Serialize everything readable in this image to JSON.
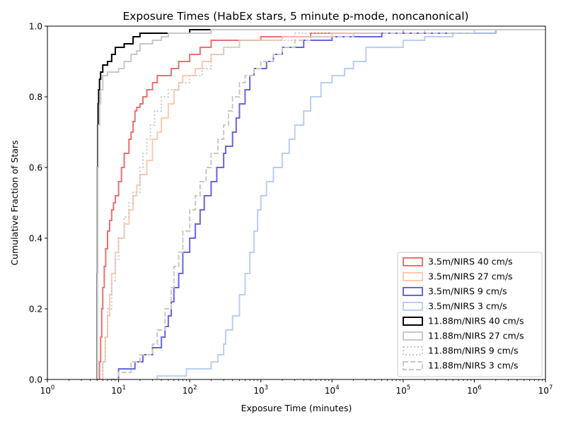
{
  "chart_data": {
    "type": "line",
    "title": "Exposure Times (HabEx stars, 5 minute p-mode, noncanonical)",
    "xlabel": "Exposure Time (minutes)",
    "ylabel": "Cumulative Fraction of Stars",
    "xscale": "log",
    "xlim": [
      1,
      10000000
    ],
    "ylim": [
      0,
      1
    ],
    "x_ticks": [
      {
        "value": 1,
        "base": "10",
        "exp": "0"
      },
      {
        "value": 10,
        "base": "10",
        "exp": "1"
      },
      {
        "value": 100,
        "base": "10",
        "exp": "2"
      },
      {
        "value": 1000,
        "base": "10",
        "exp": "3"
      },
      {
        "value": 10000,
        "base": "10",
        "exp": "4"
      },
      {
        "value": 100000,
        "base": "10",
        "exp": "5"
      },
      {
        "value": 1000000,
        "base": "10",
        "exp": "6"
      },
      {
        "value": 10000000,
        "base": "10",
        "exp": "7"
      }
    ],
    "y_ticks": [
      {
        "value": 0,
        "label": "0.0"
      },
      {
        "value": 0.2,
        "label": "0.2"
      },
      {
        "value": 0.4,
        "label": "0.4"
      },
      {
        "value": 0.6,
        "label": "0.6"
      },
      {
        "value": 0.8,
        "label": "0.8"
      },
      {
        "value": 1,
        "label": "1.0"
      }
    ],
    "grid": false,
    "legend_position": "lower-right",
    "series": [
      {
        "name": "3.5m/NIRS 40 cm/s",
        "color": "#e8575a",
        "style": "solid",
        "alpha": 0.85,
        "points": [
          [
            5.2,
            0
          ],
          [
            5.4,
            0.05
          ],
          [
            5.6,
            0.12
          ],
          [
            5.8,
            0.2
          ],
          [
            6,
            0.26
          ],
          [
            6.3,
            0.32
          ],
          [
            6.6,
            0.37
          ],
          [
            7,
            0.42
          ],
          [
            7.5,
            0.45
          ],
          [
            8,
            0.48
          ],
          [
            8.5,
            0.5
          ],
          [
            9,
            0.52
          ],
          [
            10,
            0.56
          ],
          [
            11,
            0.6
          ],
          [
            12,
            0.64
          ],
          [
            14,
            0.68
          ],
          [
            15,
            0.7
          ],
          [
            16,
            0.73
          ],
          [
            17,
            0.76
          ],
          [
            18,
            0.77
          ],
          [
            20,
            0.78
          ],
          [
            22,
            0.8
          ],
          [
            25,
            0.82
          ],
          [
            30,
            0.84
          ],
          [
            35,
            0.86
          ],
          [
            55,
            0.88
          ],
          [
            70,
            0.9
          ],
          [
            100,
            0.92
          ],
          [
            140,
            0.94
          ],
          [
            200,
            0.96
          ],
          [
            1000,
            0.97
          ],
          [
            5000,
            0.98
          ],
          [
            100000,
            0.99
          ],
          [
            10000000,
            0.99
          ]
        ]
      },
      {
        "name": "3.5m/NIRS 27 cm/s",
        "color": "#ffbfa3",
        "style": "solid",
        "alpha": 0.85,
        "points": [
          [
            5.5,
            0
          ],
          [
            6,
            0.05
          ],
          [
            6.5,
            0.12
          ],
          [
            7,
            0.18
          ],
          [
            7.5,
            0.24
          ],
          [
            8,
            0.3
          ],
          [
            9,
            0.36
          ],
          [
            10,
            0.4
          ],
          [
            12,
            0.44
          ],
          [
            14,
            0.48
          ],
          [
            16,
            0.52
          ],
          [
            18,
            0.55
          ],
          [
            20,
            0.58
          ],
          [
            25,
            0.62
          ],
          [
            30,
            0.68
          ],
          [
            35,
            0.7
          ],
          [
            40,
            0.74
          ],
          [
            50,
            0.78
          ],
          [
            60,
            0.82
          ],
          [
            70,
            0.84
          ],
          [
            80,
            0.86
          ],
          [
            120,
            0.88
          ],
          [
            150,
            0.9
          ],
          [
            200,
            0.92
          ],
          [
            300,
            0.94
          ],
          [
            500,
            0.96
          ],
          [
            2000,
            0.97
          ],
          [
            10000,
            0.98
          ],
          [
            200000,
            0.99
          ],
          [
            10000000,
            0.99
          ]
        ]
      },
      {
        "name": "3.5m/NIRS 9 cm/s",
        "color": "#4b4bdc",
        "style": "solid",
        "alpha": 0.85,
        "points": [
          [
            8,
            0
          ],
          [
            10,
            0.03
          ],
          [
            17,
            0.05
          ],
          [
            22,
            0.07
          ],
          [
            30,
            0.09
          ],
          [
            40,
            0.12
          ],
          [
            45,
            0.15
          ],
          [
            50,
            0.18
          ],
          [
            55,
            0.22
          ],
          [
            60,
            0.26
          ],
          [
            70,
            0.3
          ],
          [
            80,
            0.36
          ],
          [
            100,
            0.4
          ],
          [
            120,
            0.44
          ],
          [
            140,
            0.48
          ],
          [
            160,
            0.52
          ],
          [
            200,
            0.56
          ],
          [
            240,
            0.6
          ],
          [
            300,
            0.64
          ],
          [
            320,
            0.66
          ],
          [
            400,
            0.7
          ],
          [
            450,
            0.74
          ],
          [
            500,
            0.78
          ],
          [
            600,
            0.82
          ],
          [
            700,
            0.86
          ],
          [
            800,
            0.88
          ],
          [
            1200,
            0.9
          ],
          [
            1500,
            0.92
          ],
          [
            2000,
            0.94
          ],
          [
            4000,
            0.96
          ],
          [
            10000,
            0.97
          ],
          [
            50000,
            0.98
          ],
          [
            2000000,
            0.99
          ],
          [
            10000000,
            0.99
          ]
        ]
      },
      {
        "name": "3.5m/NIRS 3 cm/s",
        "color": "#aec5f5",
        "style": "solid",
        "alpha": 0.85,
        "points": [
          [
            35,
            0
          ],
          [
            35,
            0.01
          ],
          [
            90,
            0.03
          ],
          [
            200,
            0.05
          ],
          [
            250,
            0.07
          ],
          [
            300,
            0.1
          ],
          [
            320,
            0.14
          ],
          [
            400,
            0.18
          ],
          [
            500,
            0.24
          ],
          [
            600,
            0.3
          ],
          [
            700,
            0.36
          ],
          [
            800,
            0.42
          ],
          [
            900,
            0.48
          ],
          [
            1000,
            0.52
          ],
          [
            1200,
            0.56
          ],
          [
            1500,
            0.6
          ],
          [
            2000,
            0.64
          ],
          [
            2500,
            0.68
          ],
          [
            3000,
            0.72
          ],
          [
            4000,
            0.76
          ],
          [
            5000,
            0.8
          ],
          [
            7000,
            0.84
          ],
          [
            10000,
            0.86
          ],
          [
            15000,
            0.88
          ],
          [
            20000,
            0.9
          ],
          [
            30000,
            0.94
          ],
          [
            100000,
            0.96
          ],
          [
            200000,
            0.97
          ],
          [
            500000,
            0.98
          ],
          [
            2000000,
            0.99
          ],
          [
            10000000,
            0.99
          ]
        ]
      },
      {
        "name": "11.88m/NIRS 40 cm/s",
        "color": "#000000",
        "style": "solid",
        "alpha": 1,
        "points": [
          [
            5,
            0
          ],
          [
            5,
            0.3
          ],
          [
            5.05,
            0.6
          ],
          [
            5.1,
            0.72
          ],
          [
            5.15,
            0.78
          ],
          [
            5.25,
            0.82
          ],
          [
            5.4,
            0.85
          ],
          [
            5.6,
            0.87
          ],
          [
            6,
            0.89
          ],
          [
            7,
            0.9
          ],
          [
            8,
            0.92
          ],
          [
            9,
            0.94
          ],
          [
            12,
            0.95
          ],
          [
            16,
            0.97
          ],
          [
            20,
            0.98
          ],
          [
            100,
            0.99
          ],
          [
            10000000,
            0.99
          ]
        ]
      },
      {
        "name": "11.88m/NIRS 27 cm/s",
        "color": "#c8c8c8",
        "style": "solid",
        "alpha": 1,
        "points": [
          [
            5,
            0
          ],
          [
            5.05,
            0.3
          ],
          [
            5.1,
            0.6
          ],
          [
            5.2,
            0.72
          ],
          [
            5.4,
            0.78
          ],
          [
            5.6,
            0.82
          ],
          [
            6,
            0.86
          ],
          [
            7,
            0.87
          ],
          [
            10,
            0.88
          ],
          [
            12,
            0.9
          ],
          [
            15,
            0.92
          ],
          [
            18,
            0.93
          ],
          [
            20,
            0.95
          ],
          [
            30,
            0.96
          ],
          [
            40,
            0.97
          ],
          [
            50,
            0.98
          ],
          [
            200,
            0.99
          ],
          [
            10000000,
            0.99
          ]
        ]
      },
      {
        "name": "11.88m/NIRS 9 cm/s",
        "color": "#c8c8c8",
        "style": "dotted",
        "alpha": 1,
        "points": [
          [
            5.5,
            0
          ],
          [
            6,
            0.05
          ],
          [
            6.5,
            0.12
          ],
          [
            7,
            0.2
          ],
          [
            8,
            0.28
          ],
          [
            9,
            0.34
          ],
          [
            10,
            0.4
          ],
          [
            12,
            0.46
          ],
          [
            14,
            0.5
          ],
          [
            16,
            0.53
          ],
          [
            20,
            0.6
          ],
          [
            22,
            0.64
          ],
          [
            25,
            0.68
          ],
          [
            28,
            0.72
          ],
          [
            32,
            0.76
          ],
          [
            40,
            0.8
          ],
          [
            50,
            0.82
          ],
          [
            70,
            0.84
          ],
          [
            100,
            0.86
          ],
          [
            150,
            0.88
          ],
          [
            200,
            0.92
          ],
          [
            300,
            0.94
          ],
          [
            500,
            0.96
          ],
          [
            3000,
            0.98
          ],
          [
            100000,
            0.99
          ],
          [
            10000000,
            0.99
          ]
        ]
      },
      {
        "name": "11.88m/NIRS 3 cm/s",
        "color": "#c8c8c8",
        "style": "dashed",
        "alpha": 1,
        "points": [
          [
            7,
            0
          ],
          [
            10,
            0.02
          ],
          [
            15,
            0.05
          ],
          [
            20,
            0.07
          ],
          [
            30,
            0.1
          ],
          [
            35,
            0.14
          ],
          [
            45,
            0.2
          ],
          [
            55,
            0.26
          ],
          [
            60,
            0.32
          ],
          [
            70,
            0.36
          ],
          [
            80,
            0.42
          ],
          [
            100,
            0.48
          ],
          [
            120,
            0.52
          ],
          [
            140,
            0.56
          ],
          [
            170,
            0.6
          ],
          [
            200,
            0.64
          ],
          [
            250,
            0.68
          ],
          [
            300,
            0.72
          ],
          [
            350,
            0.76
          ],
          [
            400,
            0.8
          ],
          [
            500,
            0.84
          ],
          [
            600,
            0.86
          ],
          [
            800,
            0.88
          ],
          [
            1000,
            0.9
          ],
          [
            1500,
            0.92
          ],
          [
            2000,
            0.94
          ],
          [
            3000,
            0.96
          ],
          [
            5000,
            0.97
          ],
          [
            20000,
            0.98
          ],
          [
            1000000,
            0.99
          ],
          [
            10000000,
            0.99
          ]
        ]
      }
    ]
  }
}
